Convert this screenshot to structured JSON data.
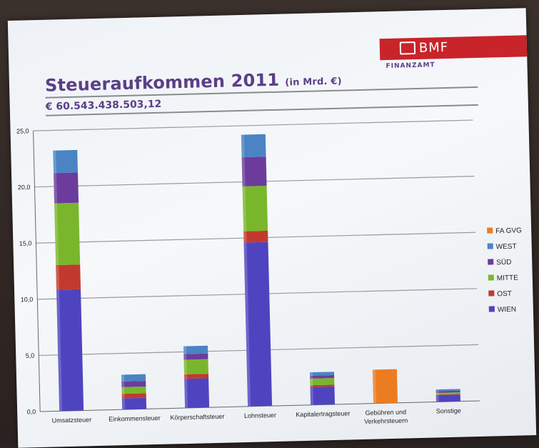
{
  "header": {
    "title": "Steueraufkommen 2011",
    "title_unit": "(in Mrd. €)",
    "subtitle": "€ 60.543.438.503,12",
    "logo_text": "BMF",
    "logo_sub": "FINANZAMT"
  },
  "colors": {
    "title": "#5a3f86",
    "logo": "#c8242a"
  },
  "chart_data": {
    "type": "bar",
    "stacked": true,
    "categories": [
      "Umsatzsteuer",
      "Einkommensteuer",
      "Körperschaftsteuer",
      "Lohnsteuer",
      "Kapitalertragsteuer",
      "Gebühren und Verkehrsteuern",
      "Sonstige"
    ],
    "category_lines": [
      [
        "Umsatzsteuer"
      ],
      [
        "Einkommensteuer"
      ],
      [
        "Körperschaftsteuer"
      ],
      [
        "Lohnsteuer"
      ],
      [
        "Kapitalertragsteuer"
      ],
      [
        "Gebühren und",
        "Verkehrsteuern"
      ],
      [
        "Sonstige"
      ]
    ],
    "series": [
      {
        "name": "WIEN",
        "color": "#4f44c0",
        "values": [
          10.8,
          1.0,
          2.6,
          14.6,
          1.6,
          0.0,
          0.6
        ]
      },
      {
        "name": "OST",
        "color": "#c23a2e",
        "values": [
          2.2,
          0.4,
          0.4,
          1.0,
          0.15,
          0.0,
          0.05
        ]
      },
      {
        "name": "MITTE",
        "color": "#7ab62c",
        "values": [
          5.5,
          0.6,
          1.3,
          4.0,
          0.6,
          0.0,
          0.15
        ]
      },
      {
        "name": "SÜD",
        "color": "#6c3c9c",
        "values": [
          2.7,
          0.5,
          0.5,
          2.6,
          0.25,
          0.0,
          0.15
        ]
      },
      {
        "name": "WEST",
        "color": "#4a84c4",
        "values": [
          2.0,
          0.6,
          0.7,
          2.0,
          0.3,
          0.0,
          0.15
        ]
      },
      {
        "name": "FA GVG",
        "color": "#ec7c22",
        "values": [
          0.0,
          0.0,
          0.0,
          0.0,
          0.0,
          3.0,
          0.0
        ]
      }
    ],
    "legend_order": [
      "FA GVG",
      "WEST",
      "SÜD",
      "MITTE",
      "OST",
      "WIEN"
    ],
    "yticks": [
      "0,0",
      "5,0",
      "10,0",
      "15,0",
      "20,0",
      "25,0"
    ],
    "ylim": [
      0,
      25
    ],
    "xlabel": "",
    "ylabel": "",
    "grid": true,
    "legend_position": "right"
  }
}
